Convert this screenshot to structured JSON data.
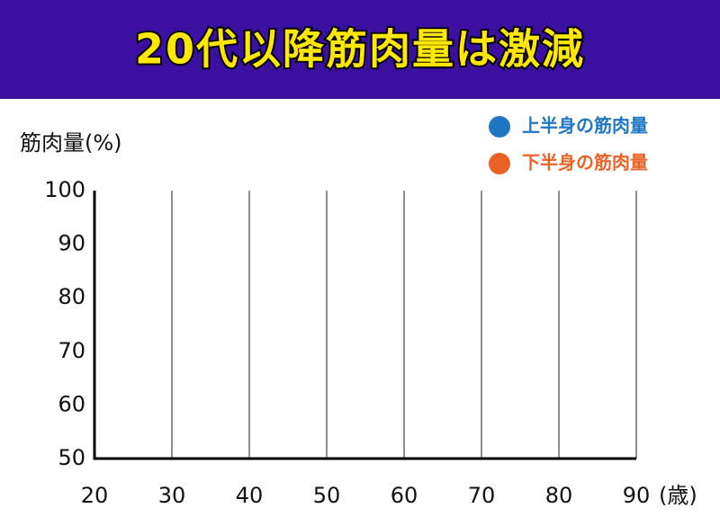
{
  "chart_data": {
    "type": "line",
    "title": "20代以降筋肉量は激減",
    "y_label": "筋肉量(%)",
    "x_label": "(歳)",
    "series": [
      {
        "name": "上半身の筋肉量",
        "color": "#1f76c2"
      },
      {
        "name": "下半身の筋肉量",
        "color": "#ea6228"
      }
    ],
    "xlim": [
      20,
      90
    ],
    "xticks": [
      20,
      30,
      40,
      50,
      60,
      70,
      80,
      90
    ],
    "ylim": [
      50,
      100
    ],
    "yticks": [
      50,
      60,
      70,
      80,
      90,
      100
    ],
    "grid": true,
    "legend": "upper right"
  }
}
